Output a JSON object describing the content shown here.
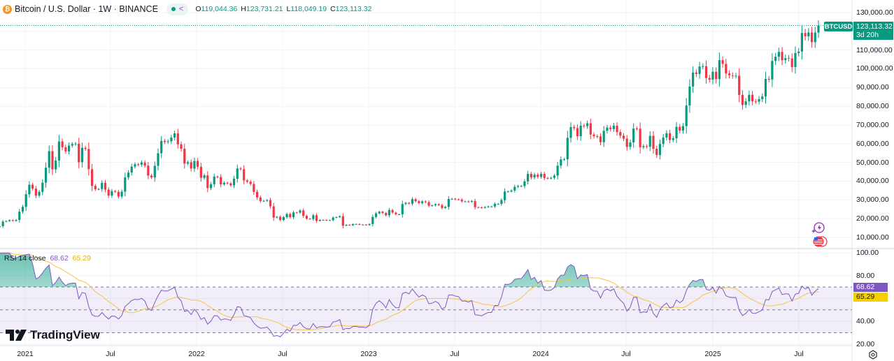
{
  "header": {
    "title": "Bitcoin / U.S. Dollar · 1W · BINANCE",
    "coin_icon": "bitcoin-icon",
    "open_label": "O",
    "open": "119,044.36",
    "high_label": "H",
    "high": "123,731.21",
    "low_label": "L",
    "low": "118,049.19",
    "close_label": "C",
    "close": "123,113.32"
  },
  "colors": {
    "up": "#089981",
    "down": "#f23645",
    "rsi": "#7e57c2",
    "rsi_ma": "#f5c542",
    "rsi_band": "#7e57c2"
  },
  "price_tag": {
    "symbol": "BTCUSD",
    "price": "123,113.32",
    "countdown": "3d 20h",
    "value": 123113.32
  },
  "price_axis": {
    "labels": [
      "130,000.00",
      "110,000.00",
      "100,000.00",
      "90,000.00",
      "80,000.00",
      "70,000.00",
      "60,000.00",
      "50,000.00",
      "40,000.00",
      "30,000.00",
      "20,000.00",
      "10,000.00"
    ]
  },
  "rsi": {
    "title": "RSI 14 close",
    "value": "68.62",
    "ma_value": "65.29",
    "axis_labels": [
      "100.00",
      "80.00",
      "40.00",
      "20.00"
    ],
    "upper_band": 70,
    "middle_band": 50,
    "lower_band": 30
  },
  "time_axis": {
    "labels": [
      "2021",
      "Jul",
      "2022",
      "Jul",
      "2023",
      "Jul",
      "2024",
      "Jul",
      "2025",
      "Jul"
    ]
  },
  "logo": "TradingView",
  "chart_data": {
    "type": "candlestick",
    "interval": "1W",
    "y_unit": "USD",
    "ylim": [
      10000,
      130000
    ],
    "weekly_closes_k": [
      15.5,
      16.0,
      18.4,
      18.7,
      19.2,
      18.8,
      19.3,
      23.7,
      26.3,
      33.0,
      38.1,
      36.0,
      32.3,
      34.3,
      39.2,
      47.2,
      56.0,
      46.3,
      51.0,
      61.2,
      58.1,
      55.9,
      59.0,
      59.8,
      60.0,
      50.1,
      57.8,
      57.2,
      46.4,
      37.5,
      35.7,
      35.8,
      39.1,
      35.5,
      32.3,
      34.7,
      34.3,
      31.8,
      34.4,
      42.0,
      44.6,
      47.8,
      49.0,
      48.8,
      50.0,
      48.3,
      43.0,
      42.0,
      48.2,
      54.9,
      61.5,
      60.9,
      61.3,
      63.3,
      65.5,
      59.7,
      57.3,
      49.4,
      50.1,
      46.7,
      50.8,
      47.7,
      41.8,
      43.1,
      36.3,
      38.4,
      42.4,
      42.2,
      38.3,
      39.1,
      38.8,
      37.8,
      41.3,
      46.8,
      46.4,
      40.4,
      39.7,
      38.5,
      34.3,
      31.3,
      29.4,
      29.5,
      29.9,
      26.6,
      20.6,
      21.0,
      19.3,
      20.8,
      22.5,
      20.8,
      23.3,
      23.2,
      24.4,
      21.5,
      20.0,
      19.8,
      21.8,
      18.8,
      19.3,
      19.3,
      19.1,
      19.2,
      20.6,
      20.8,
      21.3,
      16.3,
      16.7,
      16.5,
      17.1,
      17.1,
      16.8,
      16.8,
      16.6,
      17.1,
      20.9,
      22.8,
      23.7,
      23.0,
      21.8,
      24.6,
      23.2,
      22.3,
      22.3,
      27.8,
      28.4,
      28.0,
      30.4,
      29.3,
      28.3,
      29.2,
      28.8,
      26.9,
      27.1,
      27.7,
      27.2,
      25.7,
      26.3,
      30.5,
      30.6,
      30.3,
      30.2,
      29.2,
      29.2,
      29.0,
      29.4,
      26.1,
      26.0,
      25.8,
      26.2,
      26.5,
      26.5,
      27.9,
      27.9,
      29.9,
      34.5,
      34.5,
      35.0,
      37.0,
      37.4,
      37.4,
      39.9,
      43.9,
      42.0,
      43.5,
      42.3,
      43.9,
      41.7,
      41.6,
      41.8,
      43.0,
      48.3,
      51.6,
      51.7,
      63.1,
      68.9,
      68.3,
      64.0,
      69.6,
      69.4,
      70.9,
      64.9,
      64.0,
      63.9,
      60.8,
      66.9,
      68.6,
      67.8,
      69.6,
      66.2,
      64.3,
      62.7,
      58.3,
      60.7,
      68.1,
      68.0,
      58.1,
      58.7,
      58.4,
      64.2,
      57.3,
      54.0,
      59.9,
      63.3,
      65.6,
      62.0,
      62.9,
      69.0,
      67.0,
      69.4,
      80.4,
      90.5,
      98.0,
      97.2,
      101.2,
      101.4,
      95.1,
      94.2,
      98.4,
      94.5,
      104.6,
      102.6,
      97.5,
      96.5,
      96.2,
      96.3,
      86.0,
      80.7,
      82.6,
      86.1,
      82.6,
      82.5,
      83.8,
      85.2,
      94.6,
      94.3,
      104.2,
      106.4,
      109.0,
      104.6,
      105.7,
      105.5,
      100.9,
      108.4,
      109.2,
      119.1,
      117.3,
      119.4,
      114.2,
      119.3,
      123.1
    ]
  },
  "icons": {
    "alert": "lightning-icon",
    "flag": "us-flag-icon",
    "settings": "gear-icon"
  }
}
